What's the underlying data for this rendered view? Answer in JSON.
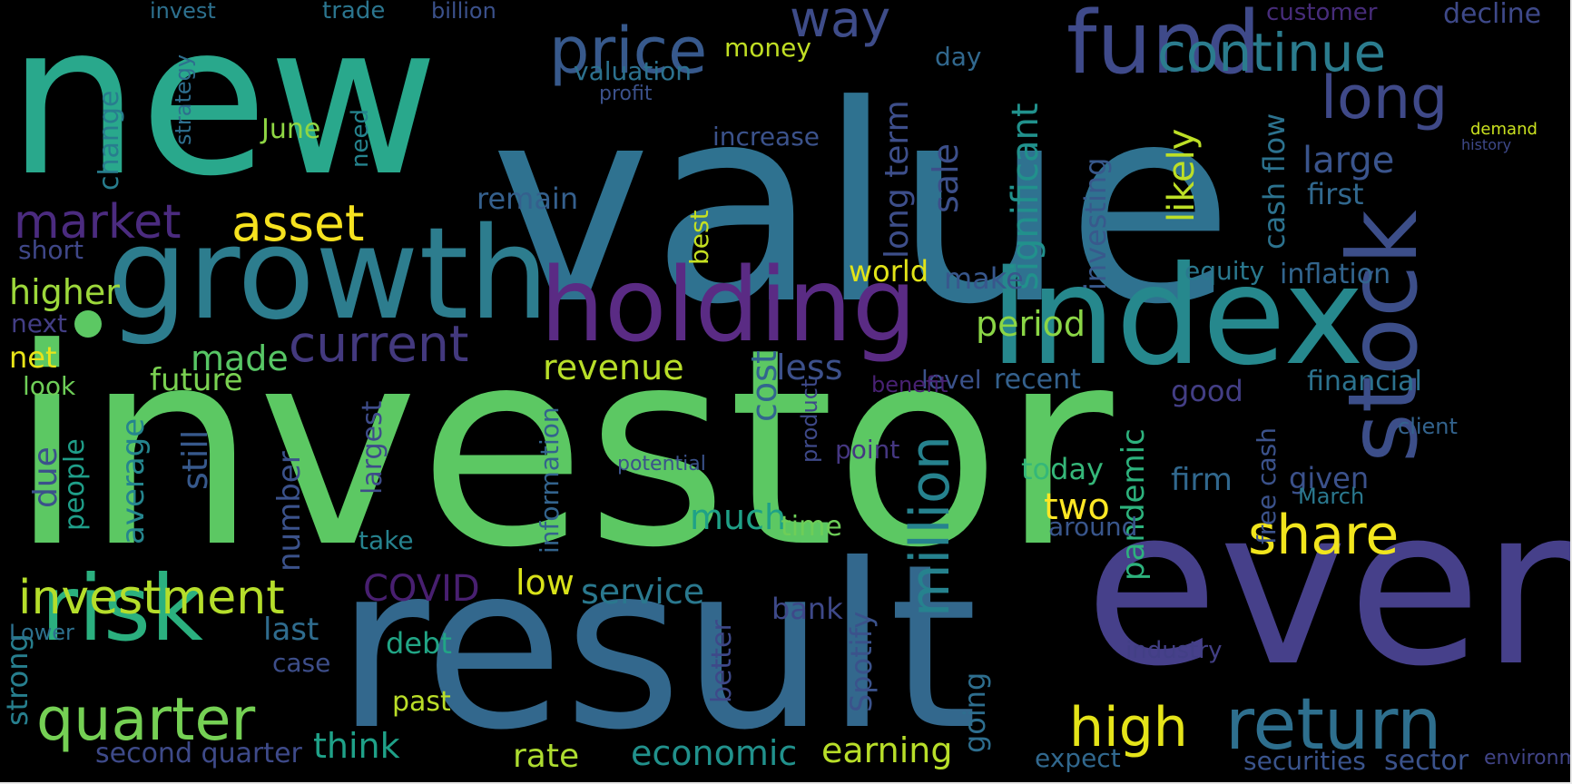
{
  "wordcloud": {
    "words": [
      {
        "text": "new",
        "color": "#29a88c"
      },
      {
        "text": "value",
        "color": "#2f7290"
      },
      {
        "text": "investor",
        "color": "#5cc863"
      },
      {
        "text": "result",
        "color": "#33688d"
      },
      {
        "text": "even",
        "color": "#46408a"
      },
      {
        "text": "growth",
        "color": "#2d7d8e"
      },
      {
        "text": "Index",
        "color": "#26888d"
      },
      {
        "text": "holding",
        "color": "#5a2b84"
      },
      {
        "text": "stock",
        "color": "#3c4e89"
      },
      {
        "text": "fund",
        "color": "#3f4a8a"
      },
      {
        "text": "price",
        "color": "#37598c"
      },
      {
        "text": "continue",
        "color": "#2b7c8e"
      },
      {
        "text": "long",
        "color": "#3f4988"
      },
      {
        "text": "way",
        "color": "#3e4c89"
      },
      {
        "text": "market",
        "color": "#4b2b7f"
      },
      {
        "text": "asset",
        "color": "#f6e21f"
      },
      {
        "text": "current",
        "color": "#43397e"
      },
      {
        "text": "risk",
        "color": "#2bb07f"
      },
      {
        "text": "quarter",
        "color": "#75d054"
      },
      {
        "text": "investment",
        "color": "#b5de2b"
      },
      {
        "text": "return",
        "color": "#2e6f8e"
      },
      {
        "text": "high",
        "color": "#e5e419"
      },
      {
        "text": "share",
        "color": "#f1e51d"
      },
      {
        "text": "million",
        "color": "#26828e"
      },
      {
        "text": "money",
        "color": "#c1df24"
      },
      {
        "text": "valuation",
        "color": "#2c718e"
      },
      {
        "text": "profit",
        "color": "#3b518b"
      },
      {
        "text": "June",
        "color": "#8fd744"
      },
      {
        "text": "change",
        "color": "#287d8e"
      },
      {
        "text": "strategy",
        "color": "#2e6e8e"
      },
      {
        "text": "increase",
        "color": "#3b528b"
      },
      {
        "text": "long term",
        "color": "#3d4e8a"
      },
      {
        "text": "sale",
        "color": "#3c4f8a"
      },
      {
        "text": "significant",
        "color": "#21918c"
      },
      {
        "text": "likely",
        "color": "#bddf26"
      },
      {
        "text": "cash flow",
        "color": "#2c728e"
      },
      {
        "text": "large",
        "color": "#3a548c"
      },
      {
        "text": "first",
        "color": "#31688e"
      },
      {
        "text": "remain",
        "color": "#35608d"
      },
      {
        "text": "best",
        "color": "#c5e021"
      },
      {
        "text": "investing",
        "color": "#38598c"
      },
      {
        "text": "world",
        "color": "#e2e418"
      },
      {
        "text": "make",
        "color": "#38578c"
      },
      {
        "text": "period",
        "color": "#8bd646"
      },
      {
        "text": "equity",
        "color": "#2a788e"
      },
      {
        "text": "inflation",
        "color": "#32658e"
      },
      {
        "text": "higher",
        "color": "#9dd93b"
      },
      {
        "text": "next",
        "color": "#433e85"
      },
      {
        "text": "short",
        "color": "#3f4788"
      },
      {
        "text": "made",
        "color": "#57c665"
      },
      {
        "text": "future",
        "color": "#7ad151"
      },
      {
        "text": "revenue",
        "color": "#b8de29"
      },
      {
        "text": "less",
        "color": "#3c508b"
      },
      {
        "text": "net",
        "color": "#e8e419"
      },
      {
        "text": "look",
        "color": "#6ece58"
      },
      {
        "text": "average",
        "color": "#25858e"
      },
      {
        "text": "cost",
        "color": "#32658e"
      },
      {
        "text": "product",
        "color": "#3e4989"
      },
      {
        "text": "recent",
        "color": "#34618d"
      },
      {
        "text": "financial",
        "color": "#2c728e"
      },
      {
        "text": "good",
        "color": "#433e85"
      },
      {
        "text": "level",
        "color": "#3b528b"
      },
      {
        "text": "point",
        "color": "#453781"
      },
      {
        "text": "today",
        "color": "#35b779"
      },
      {
        "text": "firm",
        "color": "#31688e"
      },
      {
        "text": "given",
        "color": "#3b518b"
      },
      {
        "text": "March",
        "color": "#2a788e"
      },
      {
        "text": "pandemic",
        "color": "#2db27d"
      },
      {
        "text": "two",
        "color": "#fde725"
      },
      {
        "text": "around",
        "color": "#39568c"
      },
      {
        "text": "much",
        "color": "#1fa187"
      },
      {
        "text": "time",
        "color": "#6ece58"
      },
      {
        "text": "still",
        "color": "#37598c"
      },
      {
        "text": "number",
        "color": "#3b528b"
      },
      {
        "text": "largest",
        "color": "#3e4c8a"
      },
      {
        "text": "due",
        "color": "#3b518b"
      },
      {
        "text": "people",
        "color": "#1f9e89"
      },
      {
        "text": "information",
        "color": "#33638d"
      },
      {
        "text": "take",
        "color": "#26828e"
      },
      {
        "text": "COVID",
        "color": "#481f70"
      },
      {
        "text": "low",
        "color": "#d8e219"
      },
      {
        "text": "service",
        "color": "#2a788e"
      },
      {
        "text": "bank",
        "color": "#3e4989"
      },
      {
        "text": "last",
        "color": "#2f6c8e"
      },
      {
        "text": "debt",
        "color": "#21a585"
      },
      {
        "text": "case",
        "color": "#3d4e8a"
      },
      {
        "text": "past",
        "color": "#bade28"
      },
      {
        "text": "think",
        "color": "#1fa188"
      },
      {
        "text": "rate",
        "color": "#addc30"
      },
      {
        "text": "economic",
        "color": "#21918c"
      },
      {
        "text": "earning",
        "color": "#b8de29"
      },
      {
        "text": "going",
        "color": "#2e6e8e"
      },
      {
        "text": "better",
        "color": "#3e4989"
      },
      {
        "text": "Spotify",
        "color": "#3b528b"
      },
      {
        "text": "second quarter",
        "color": "#3e4a89"
      },
      {
        "text": "strong",
        "color": "#277f8e"
      },
      {
        "text": "Lower",
        "color": "#2d708e"
      },
      {
        "text": "expect",
        "color": "#31688e"
      },
      {
        "text": "industry",
        "color": "#423f85"
      },
      {
        "text": "customer",
        "color": "#472c7a"
      },
      {
        "text": "decline",
        "color": "#3e4989"
      },
      {
        "text": "trade",
        "color": "#2b758e"
      },
      {
        "text": "billion",
        "color": "#3b518b"
      },
      {
        "text": "invest",
        "color": "#2d708e"
      },
      {
        "text": "day",
        "color": "#31688e"
      },
      {
        "text": "need",
        "color": "#25838e"
      },
      {
        "text": "securities",
        "color": "#3a548c"
      },
      {
        "text": "sector",
        "color": "#3b528b"
      },
      {
        "text": "environment",
        "color": "#414487"
      },
      {
        "text": "demand",
        "color": "#cae11f"
      },
      {
        "text": "history",
        "color": "#3e4989"
      },
      {
        "text": "potential",
        "color": "#3b528b"
      },
      {
        "text": "free cash",
        "color": "#3b528b"
      },
      {
        "text": "client",
        "color": "#33638d"
      },
      {
        "text": "benefit",
        "color": "#482173"
      }
    ]
  }
}
